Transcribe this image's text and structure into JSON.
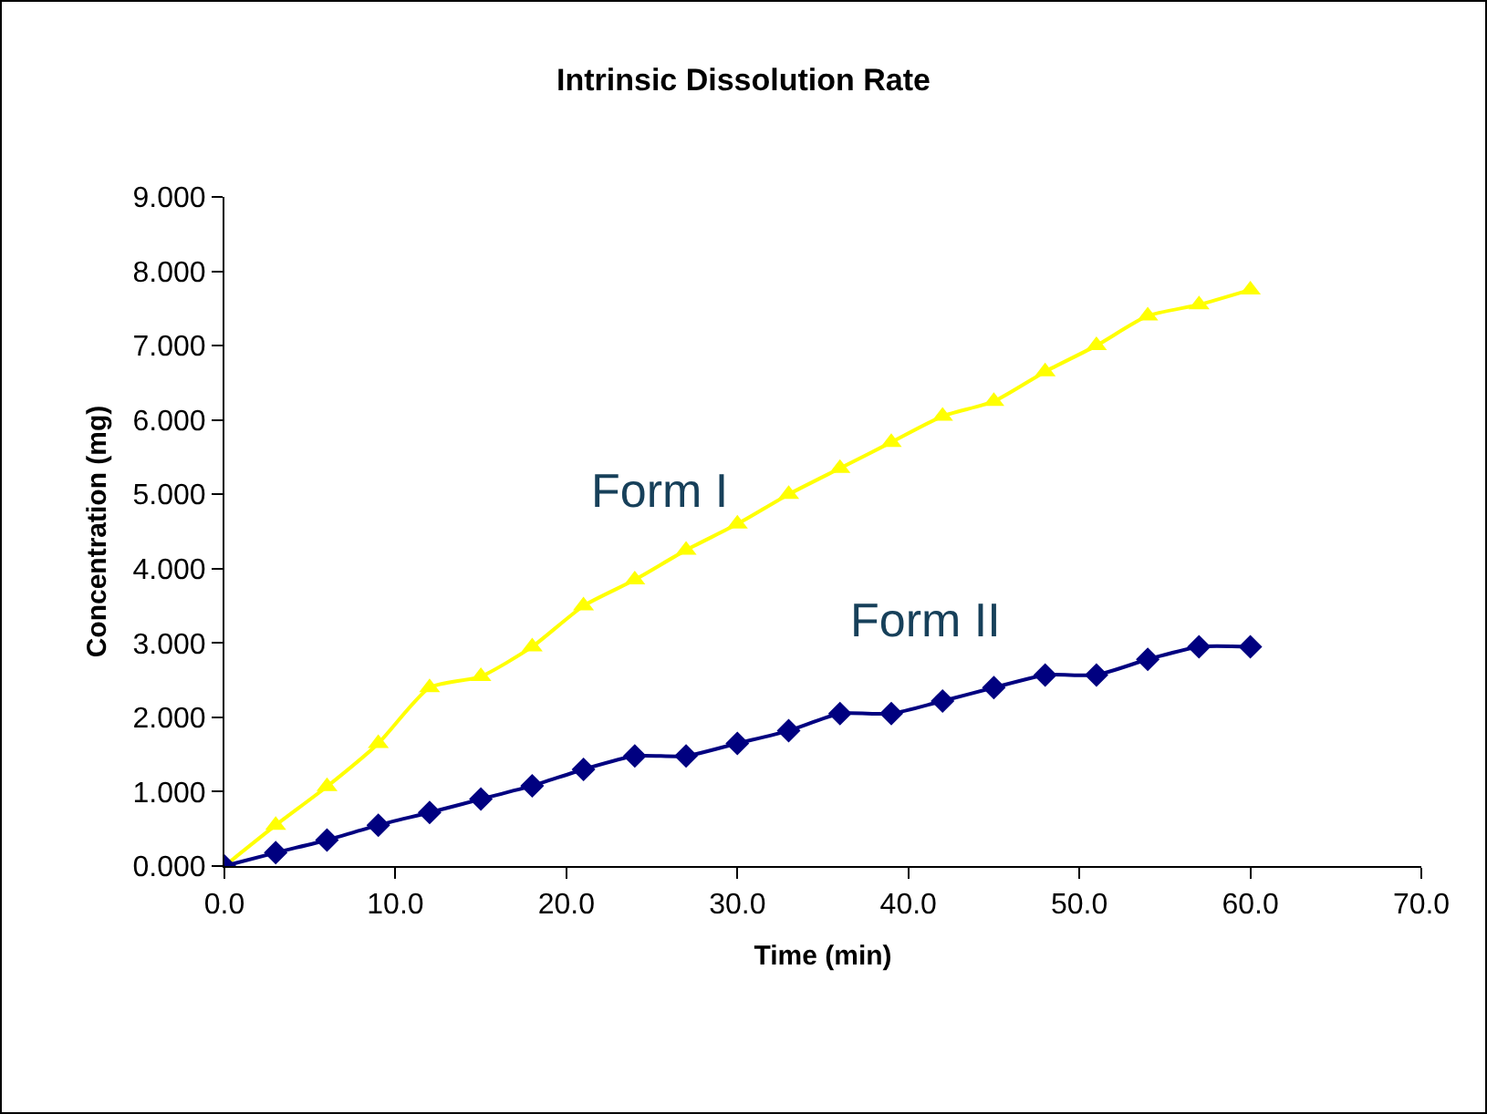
{
  "chart_data": {
    "type": "line",
    "title": "Intrinsic Dissolution Rate",
    "xlabel": "Time (min)",
    "ylabel": "Concentration (mg)",
    "x": [
      0,
      3,
      6,
      9,
      12,
      15,
      18,
      21,
      24,
      27,
      30,
      33,
      36,
      39,
      42,
      45,
      48,
      51,
      54,
      57,
      60
    ],
    "series": [
      {
        "name": "Form I",
        "color": "#ffff00",
        "marker": "triangle",
        "values": [
          0,
          0.55,
          1.07,
          1.65,
          2.4,
          2.55,
          2.95,
          3.5,
          3.85,
          4.25,
          4.6,
          5.0,
          5.35,
          5.7,
          6.05,
          6.25,
          6.65,
          7.0,
          7.4,
          7.55,
          7.75
        ]
      },
      {
        "name": "Form II",
        "color": "#000080",
        "marker": "diamond",
        "values": [
          0,
          0.18,
          0.35,
          0.55,
          0.72,
          0.9,
          1.08,
          1.3,
          1.48,
          1.48,
          1.65,
          1.82,
          2.05,
          2.05,
          2.22,
          2.4,
          2.57,
          2.57,
          2.78,
          2.95,
          2.95
        ]
      }
    ],
    "xlim": [
      0,
      70
    ],
    "xticks": [
      {
        "value": 0,
        "label": "0.0"
      },
      {
        "value": 10,
        "label": "10.0"
      },
      {
        "value": 20,
        "label": "20.0"
      },
      {
        "value": 30,
        "label": "30.0"
      },
      {
        "value": 40,
        "label": "40.0"
      },
      {
        "value": 50,
        "label": "50.0"
      },
      {
        "value": 60,
        "label": "60.0"
      },
      {
        "value": 70,
        "label": "70.0"
      }
    ],
    "ylim": [
      0,
      9
    ],
    "yticks": [
      {
        "value": 0,
        "label": "0.000"
      },
      {
        "value": 1,
        "label": "1.000"
      },
      {
        "value": 2,
        "label": "2.000"
      },
      {
        "value": 3,
        "label": "3.000"
      },
      {
        "value": 4,
        "label": "4.000"
      },
      {
        "value": 5,
        "label": "5.000"
      },
      {
        "value": 6,
        "label": "6.000"
      },
      {
        "value": 7,
        "label": "7.000"
      },
      {
        "value": 8,
        "label": "8.000"
      },
      {
        "value": 9,
        "label": "9.000"
      }
    ],
    "grid": false,
    "legend": false
  }
}
